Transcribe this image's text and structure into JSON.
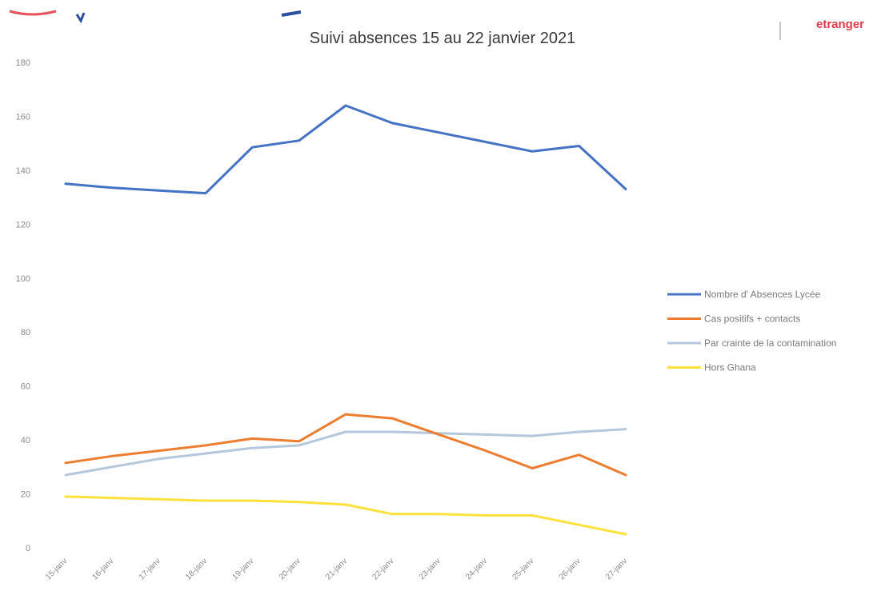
{
  "chart_data": {
    "type": "line",
    "title": "Suivi absences 15 au 22 janvier 2021",
    "categories": [
      "15-janv",
      "16-janv",
      "17-janv",
      "18-janv",
      "19-janv",
      "20-janv",
      "21-janv",
      "22-janv",
      "23-janv",
      "24-janv",
      "25-janv",
      "26-janv",
      "27-janv"
    ],
    "yticks": [
      0,
      20,
      40,
      60,
      80,
      100,
      120,
      140,
      160,
      180
    ],
    "ylim": [
      0,
      180
    ],
    "grid": false,
    "legend_position": "right",
    "series": [
      {
        "name": "Nombre d' Absences Lycée",
        "color": "#4472C4",
        "values": [
          135,
          133.5,
          132.5,
          131.5,
          148.5,
          151,
          164,
          157.5,
          154,
          150.5,
          147,
          149,
          133
        ]
      },
      {
        "name": "Cas positifs + contacts",
        "color": "#ED7D31",
        "values": [
          31.5,
          34,
          36,
          38,
          40.5,
          39.5,
          49.5,
          48,
          42,
          36,
          29.5,
          34.5,
          27
        ]
      },
      {
        "name": "Par crainte de la contamination",
        "color": "#B4C7DC",
        "values": [
          27,
          30,
          33,
          35,
          37,
          38,
          43,
          43,
          42.5,
          42,
          41.5,
          43,
          44
        ]
      },
      {
        "name": "Hors Ghana",
        "color": "#FFE13D",
        "values": [
          19,
          18.5,
          18,
          17.5,
          17.5,
          17,
          16,
          12.5,
          12.5,
          12,
          12,
          8.5,
          5
        ]
      }
    ]
  },
  "header_fragment": {
    "right_text": "etranger",
    "accent_color": "#e03a4a"
  }
}
